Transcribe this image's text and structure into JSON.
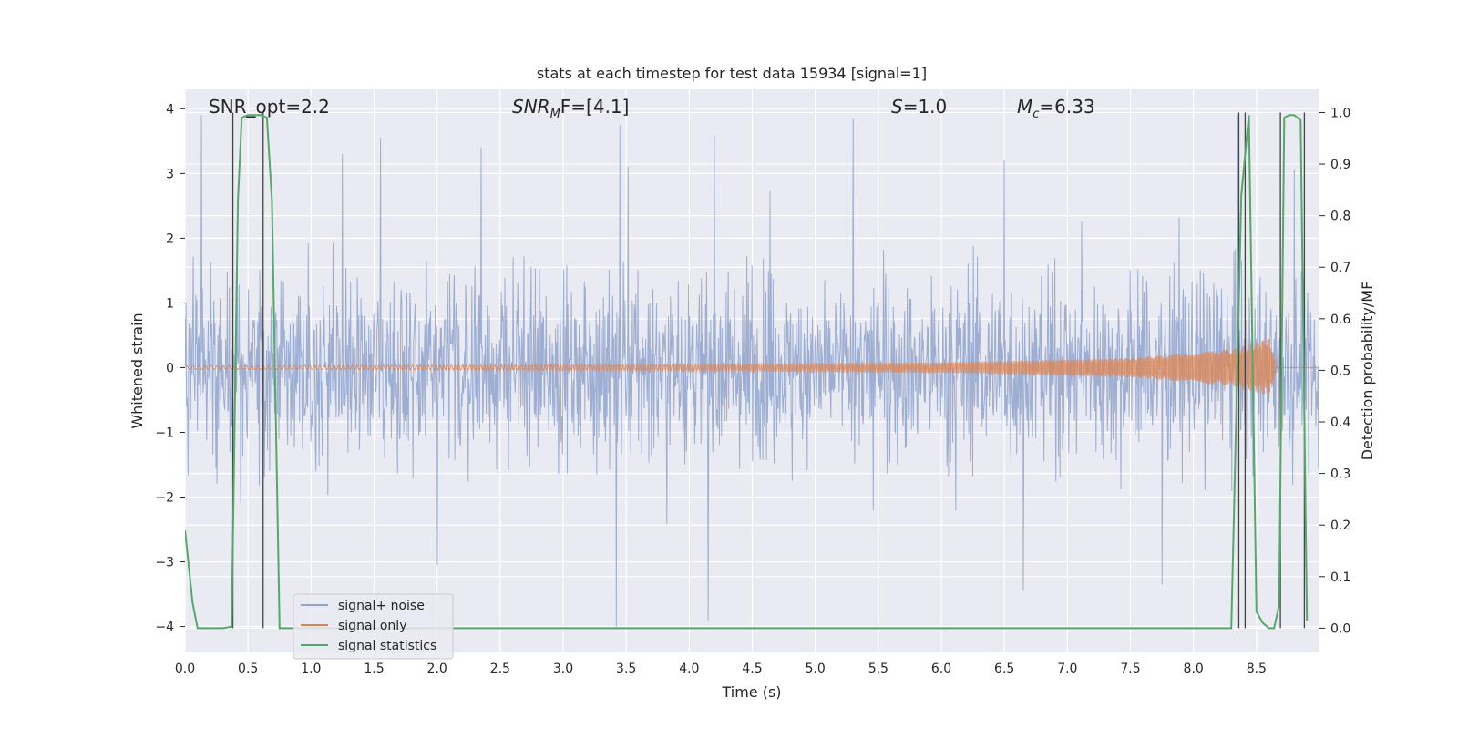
{
  "chart_data": {
    "type": "line",
    "title": "stats at each timestep for test data 15934 [signal=1]",
    "xlabel": "Time (s)",
    "ylabel": "Whitened strain",
    "ylabel_right": "Detection probability/MF",
    "xlim": [
      0.0,
      9.0
    ],
    "ylim": [
      -4.4,
      4.3
    ],
    "ylim_right": [
      -0.047,
      1.045
    ],
    "x_ticks": [
      "0.0",
      "0.5",
      "1.0",
      "1.5",
      "2.0",
      "2.5",
      "3.0",
      "3.5",
      "4.0",
      "4.5",
      "5.0",
      "5.5",
      "6.0",
      "6.5",
      "7.0",
      "7.5",
      "8.0",
      "8.5"
    ],
    "y_ticks": [
      "4",
      "3",
      "2",
      "1",
      "0",
      "−1",
      "−2",
      "−3",
      "−4"
    ],
    "y_ticks_right": [
      "1.0",
      "0.9",
      "0.8",
      "0.7",
      "0.6",
      "0.5",
      "0.4",
      "0.3",
      "0.2",
      "0.1",
      "0.0"
    ],
    "grid": true,
    "legend_position": "bottom-left",
    "annotations": {
      "snr_opt": "SNR_opt=2.2",
      "snr_mf_base": "SNR",
      "snr_mf_sub": "M",
      "snr_mf_rest": "F=[4.1]",
      "s_base": "S",
      "s_rest": "=1.0",
      "mc_base": "M",
      "mc_sub": "c",
      "mc_rest": "=6.33"
    },
    "series": [
      {
        "name": "signal+ noise",
        "color": "#8fa3cc",
        "description_of_envelope": "whitened strain noise spanning the full time range",
        "typical_range": [
          -2.0,
          2.0
        ],
        "peaks": [
          {
            "x": 0.13,
            "y": 3.9
          },
          {
            "x": 1.25,
            "y": 3.3
          },
          {
            "x": 1.55,
            "y": 3.55
          },
          {
            "x": 2.35,
            "y": 3.4
          },
          {
            "x": 3.45,
            "y": 3.75
          },
          {
            "x": 4.2,
            "y": 3.6
          },
          {
            "x": 5.3,
            "y": 3.85
          },
          {
            "x": 6.5,
            "y": 3.2
          },
          {
            "x": 8.35,
            "y": 3.9
          },
          {
            "x": 8.8,
            "y": 3.05
          },
          {
            "x": 3.42,
            "y": -4.0
          },
          {
            "x": 4.15,
            "y": -3.9
          },
          {
            "x": 6.65,
            "y": -3.45
          },
          {
            "x": 7.75,
            "y": -3.35
          },
          {
            "x": 2.0,
            "y": -3.05
          }
        ]
      },
      {
        "name": "signal only",
        "color": "#dd8452",
        "description_of_envelope": "chirp growing toward the end",
        "amplitude": [
          {
            "x": 0.0,
            "y": 0.03
          },
          {
            "x": 4.0,
            "y": 0.05
          },
          {
            "x": 6.0,
            "y": 0.08
          },
          {
            "x": 7.5,
            "y": 0.15
          },
          {
            "x": 8.3,
            "y": 0.28
          },
          {
            "x": 8.6,
            "y": 0.45
          },
          {
            "x": 8.65,
            "y": 0.1
          }
        ]
      },
      {
        "name": "signal statistics",
        "color": "#55a868",
        "axis": "right",
        "x": [
          0.0,
          0.06,
          0.1,
          0.15,
          0.2,
          0.3,
          0.37,
          0.42,
          0.45,
          0.5,
          0.55,
          0.6,
          0.65,
          0.69,
          0.75,
          0.8,
          1.0,
          2.0,
          3.0,
          4.0,
          5.0,
          6.0,
          7.0,
          8.0,
          8.3,
          8.38,
          8.44,
          8.5,
          8.55,
          8.6,
          8.64,
          8.68,
          8.72,
          8.76,
          8.8,
          8.85,
          8.9
        ],
        "values": [
          0.19,
          0.05,
          0.0,
          0.0,
          0.0,
          0.0,
          0.003,
          0.83,
          0.99,
          0.995,
          0.995,
          0.995,
          0.99,
          0.83,
          0.0,
          0.0,
          0.0,
          0.0,
          0.0,
          0.0,
          0.0,
          0.0,
          0.0,
          0.0,
          0.0,
          0.84,
          0.995,
          0.032,
          0.01,
          0.0,
          0.0,
          0.045,
          0.99,
          0.995,
          0.995,
          0.985,
          0.015
        ]
      }
    ],
    "vertical_markers": [
      0.38,
      0.62,
      8.36,
      8.41,
      8.69,
      8.88
    ]
  }
}
